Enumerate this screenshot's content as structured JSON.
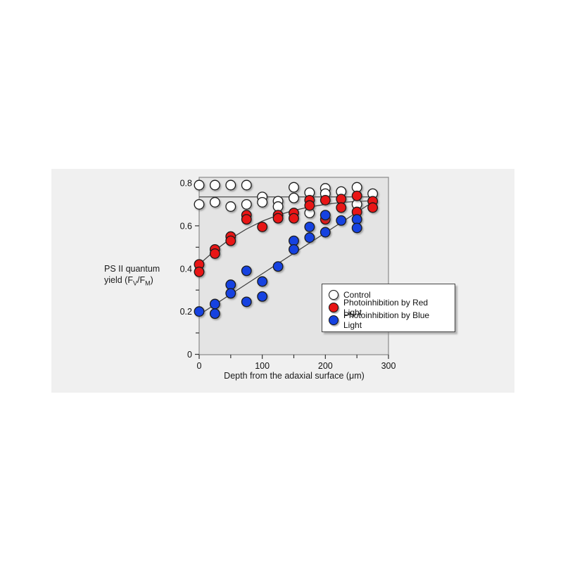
{
  "figure": {
    "background": "#ffffff",
    "panel_bg": "#f0f0f0",
    "plot_bg": "#e4e4e4",
    "frame_color": "#8a8a8a",
    "tick_color": "#333333",
    "fit_line_color": "#3a3a3a"
  },
  "chart_data": {
    "type": "scatter",
    "title": "",
    "xlabel": "Depth from the adaxial surface (μm)",
    "ylabel_line1": "PS II quantum",
    "ylabel_line2_parts": {
      "pre": "yield (F",
      "sub1": "V",
      "mid": "/F",
      "sub2": "M",
      "post": ")"
    },
    "xlim": [
      0,
      300
    ],
    "ylim": [
      0,
      0.827
    ],
    "x_major_ticks": [
      0,
      100,
      200,
      300
    ],
    "x_minor_ticks": [
      50,
      150,
      250
    ],
    "y_major_ticks": [
      0,
      0.2,
      0.4,
      0.6,
      0.8
    ],
    "y_major_tick_labels": [
      "0",
      "0.2",
      "0.4",
      "0.6",
      "0.8"
    ],
    "y_minor_ticks": [
      0.1,
      0.3,
      0.5,
      0.7
    ],
    "grid": false,
    "legend_position": "lower right",
    "series": [
      {
        "name": "Control",
        "color": "#ffffff",
        "points": [
          [
            0,
            0.79
          ],
          [
            0,
            0.7
          ],
          [
            25,
            0.79
          ],
          [
            25,
            0.71
          ],
          [
            50,
            0.79
          ],
          [
            50,
            0.69
          ],
          [
            75,
            0.79
          ],
          [
            75,
            0.7
          ],
          [
            100,
            0.735
          ],
          [
            100,
            0.71
          ],
          [
            125,
            0.715
          ],
          [
            125,
            0.69
          ],
          [
            150,
            0.78
          ],
          [
            150,
            0.73
          ],
          [
            175,
            0.755
          ],
          [
            175,
            0.66
          ],
          [
            200,
            0.775
          ],
          [
            200,
            0.75
          ],
          [
            225,
            0.76
          ],
          [
            250,
            0.78
          ],
          [
            250,
            0.7
          ],
          [
            275,
            0.75
          ]
        ]
      },
      {
        "name": "Photoinhibition by Red Light",
        "color": "#e81414",
        "points": [
          [
            0,
            0.42
          ],
          [
            0,
            0.385
          ],
          [
            25,
            0.49
          ],
          [
            25,
            0.47
          ],
          [
            50,
            0.55
          ],
          [
            50,
            0.53
          ],
          [
            75,
            0.65
          ],
          [
            75,
            0.63
          ],
          [
            100,
            0.595
          ],
          [
            125,
            0.65
          ],
          [
            125,
            0.635
          ],
          [
            150,
            0.66
          ],
          [
            150,
            0.635
          ],
          [
            175,
            0.72
          ],
          [
            175,
            0.695
          ],
          [
            200,
            0.72
          ],
          [
            200,
            0.63
          ],
          [
            225,
            0.725
          ],
          [
            225,
            0.685
          ],
          [
            250,
            0.74
          ],
          [
            250,
            0.665
          ],
          [
            275,
            0.715
          ],
          [
            275,
            0.685
          ]
        ]
      },
      {
        "name": "Photoinhibition by Blue Light",
        "color": "#1542e0",
        "points": [
          [
            0,
            0.2
          ],
          [
            25,
            0.235
          ],
          [
            25,
            0.19
          ],
          [
            50,
            0.325
          ],
          [
            50,
            0.285
          ],
          [
            75,
            0.39
          ],
          [
            75,
            0.245
          ],
          [
            100,
            0.34
          ],
          [
            100,
            0.27
          ],
          [
            125,
            0.41
          ],
          [
            150,
            0.53
          ],
          [
            150,
            0.49
          ],
          [
            175,
            0.595
          ],
          [
            175,
            0.545
          ],
          [
            200,
            0.65
          ],
          [
            200,
            0.57
          ],
          [
            225,
            0.625
          ],
          [
            250,
            0.63
          ],
          [
            250,
            0.59
          ]
        ]
      }
    ],
    "fit_lines": [
      {
        "series": "Control",
        "points": [
          [
            0,
            0.735
          ],
          [
            277,
            0.735
          ]
        ]
      },
      {
        "series": "Photoinhibition by Red Light",
        "points": [
          [
            0,
            0.42
          ],
          [
            25,
            0.485
          ],
          [
            50,
            0.54
          ],
          [
            75,
            0.585
          ],
          [
            100,
            0.622
          ],
          [
            125,
            0.65
          ],
          [
            150,
            0.672
          ],
          [
            175,
            0.688
          ],
          [
            200,
            0.7
          ],
          [
            225,
            0.709
          ],
          [
            250,
            0.714
          ],
          [
            277,
            0.717
          ]
        ]
      },
      {
        "series": "Photoinhibition by Blue Light",
        "points": [
          [
            0,
            0.185
          ],
          [
            277,
            0.715
          ]
        ]
      }
    ]
  }
}
